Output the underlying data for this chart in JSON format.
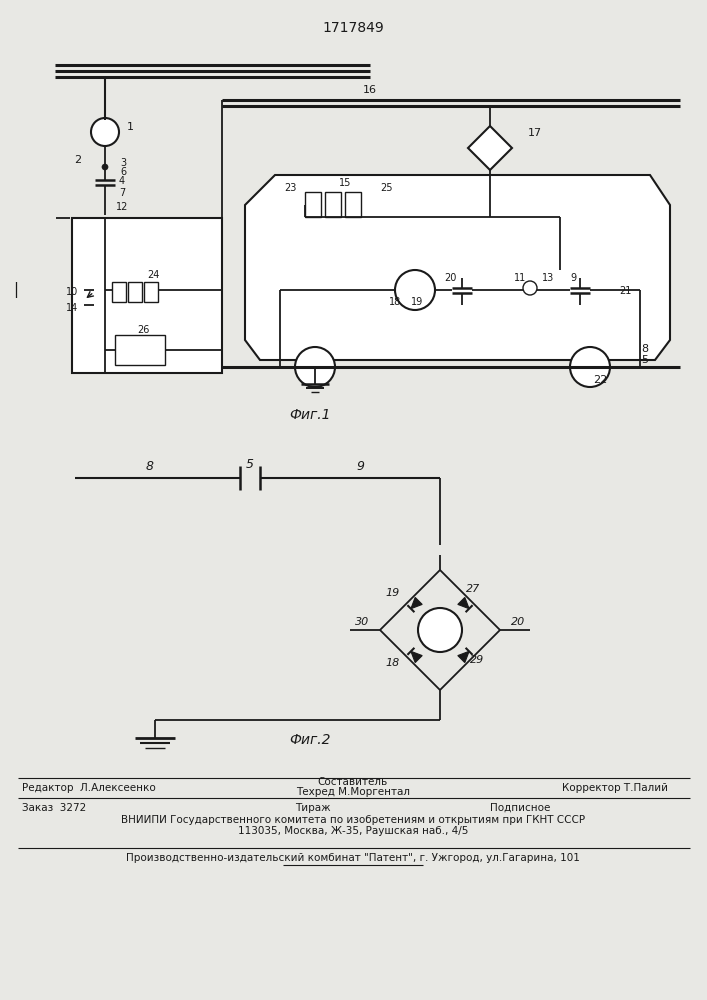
{
  "title": "1717849",
  "fig1_label": "Фиг.1",
  "fig2_label": "Фиг.2",
  "bg_color": "#e8e8e4",
  "line_color": "#1a1a1a",
  "footer_editor": "Редактор  Л.Алексеенко",
  "footer_composer_title": "Составитель",
  "footer_composer": "Техред М.Моргентал",
  "footer_corrector": "Корректор Т.Палий",
  "footer_order": "Заказ  3272",
  "footer_tirazh": "Тираж",
  "footer_podpisnoe": "Подписное",
  "footer_vniipи": "ВНИИПИ Государственного комитета по изобретениям и открытиям при ГКНТ СССР",
  "footer_address": "113035, Москва, Ж-35, Раушская наб., 4/5",
  "footer_patent": "Производственно-издательский комбинат \"Патент\", г. Ужгород, ул.Гагарина, 101"
}
